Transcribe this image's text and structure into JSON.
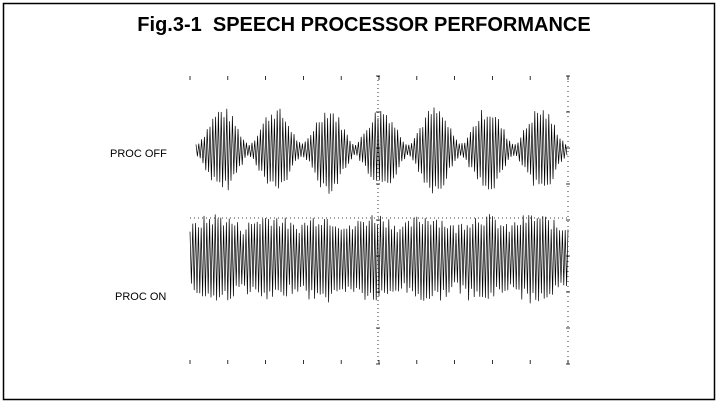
{
  "figure": {
    "title": "Fig.3-1  SPEECH PROCESSOR PERFORMANCE",
    "labels": [
      "PROC OFF",
      "PROC ON"
    ]
  }
}
